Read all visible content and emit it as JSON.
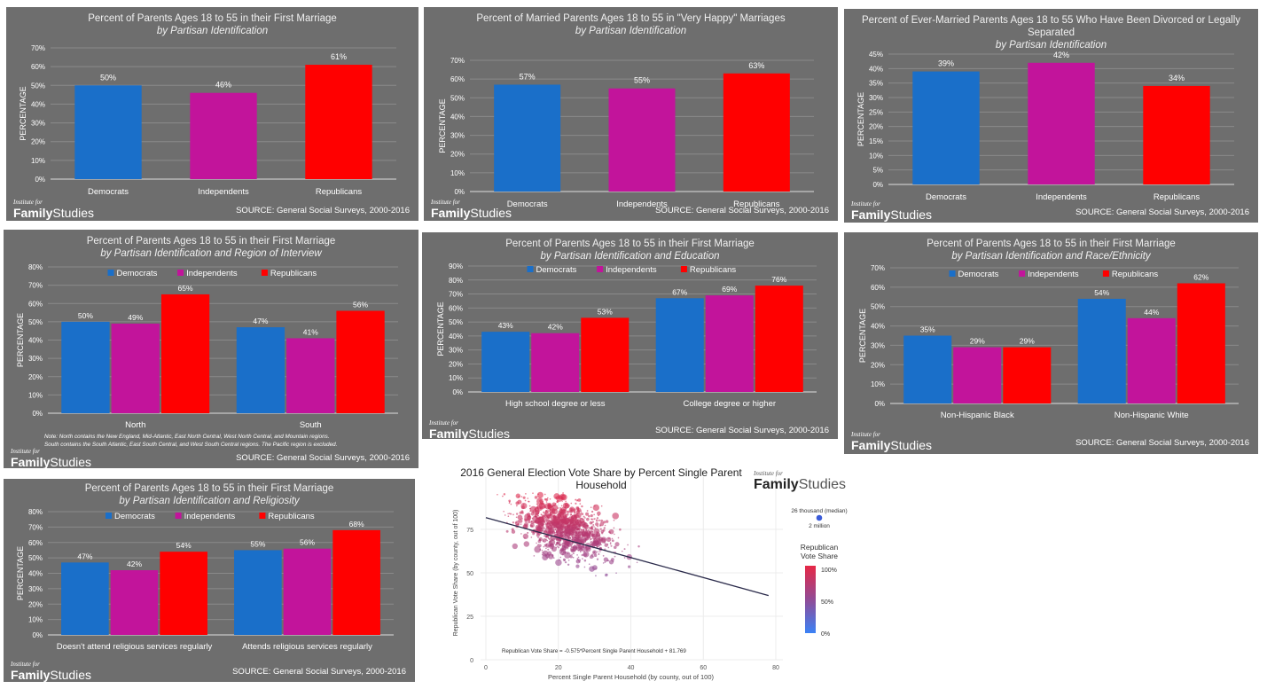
{
  "colors": {
    "dem": "#1a6fc9",
    "ind": "#c2149b",
    "rep": "#ff0000",
    "panel": "#6e6e6e"
  },
  "branding": {
    "inst": "Institute for",
    "family": "Family",
    "studies": "Studies"
  },
  "source": "SOURCE: General Social Surveys, 2000-2016",
  "ylabel": "PERCENTAGE",
  "legend": [
    "Democrats",
    "Independents",
    "Republicans"
  ],
  "panels": [
    {
      "title": "Percent of Parents Ages 18 to 55 in their First Marriage",
      "subtitle": "by Partisan Identification"
    },
    {
      "title": "Percent of Married Parents Ages 18 to 55 in \"Very Happy\" Marriages",
      "subtitle": "by Partisan Identification"
    },
    {
      "title": "Percent of Ever-Married Parents Ages 18 to 55 Who Have Been Divorced or Legally Separated",
      "subtitle": "by Partisan Identification"
    },
    {
      "title": "Percent of Parents Ages 18 to 55 in their First Marriage",
      "subtitle": "by Partisan Identification and Region of Interview",
      "note": [
        "Note: North contains the New England, Mid-Atlantic, East North Central, West North Central, and Mountain regions.",
        "South contains the South Atlantic, East South Central, and West South Central regions. The Pacific region is excluded."
      ]
    },
    {
      "title": "Percent of Parents Ages 18 to 55 in their First Marriage",
      "subtitle": "by Partisan Identification and Education"
    },
    {
      "title": "Percent of Parents Ages 18 to 55 in their First Marriage",
      "subtitle": "by Partisan Identification and Race/Ethnicity"
    },
    {
      "title": "Percent of Parents Ages 18 to 55 in their First Marriage",
      "subtitle": "by Partisan Identification and Religiosity"
    }
  ],
  "scatter_panel": {
    "title": "2016 General Election Vote Share by Percent Single Parent Household",
    "ylabel": "Republican Vote Share (by county, out of 100)",
    "xlabel": "Percent Single Parent Household (by county, out of 100)",
    "equation": "Republican Vote Share = -0.575*Percent Single Parent Household + 81.769",
    "size_legend": [
      "26 thousand (median)",
      "2 million"
    ],
    "color_legend_title": "Republican Vote Share",
    "color_legend_ticks": [
      "100%",
      "50%",
      "0%"
    ]
  },
  "chart_data": [
    {
      "type": "bar",
      "categories": [
        "Democrats",
        "Independents",
        "Republicans"
      ],
      "values": [
        50,
        46,
        61
      ],
      "ylim": [
        0,
        70
      ],
      "ylabel": "PERCENTAGE"
    },
    {
      "type": "bar",
      "categories": [
        "Democrats",
        "Independents",
        "Republicans"
      ],
      "values": [
        57,
        55,
        63
      ],
      "ylim": [
        0,
        70
      ],
      "ylabel": "PERCENTAGE"
    },
    {
      "type": "bar",
      "categories": [
        "Democrats",
        "Independents",
        "Republicans"
      ],
      "values": [
        39,
        42,
        34
      ],
      "ylim": [
        0,
        45
      ],
      "ylabel": "PERCENTAGE"
    },
    {
      "type": "bar",
      "categories": [
        "North",
        "South"
      ],
      "series": [
        {
          "name": "Democrats",
          "values": [
            50,
            47
          ]
        },
        {
          "name": "Independents",
          "values": [
            49,
            41
          ]
        },
        {
          "name": "Republicans",
          "values": [
            65,
            56
          ]
        }
      ],
      "ylim": [
        0,
        80
      ],
      "ylabel": "PERCENTAGE"
    },
    {
      "type": "bar",
      "categories": [
        "High school degree or less",
        "College degree or higher"
      ],
      "series": [
        {
          "name": "Democrats",
          "values": [
            43,
            67
          ]
        },
        {
          "name": "Independents",
          "values": [
            42,
            69
          ]
        },
        {
          "name": "Republicans",
          "values": [
            53,
            76
          ]
        }
      ],
      "ylim": [
        0,
        90
      ],
      "ylabel": "PERCENTAGE"
    },
    {
      "type": "bar",
      "categories": [
        "Non-Hispanic Black",
        "Non-Hispanic White"
      ],
      "series": [
        {
          "name": "Democrats",
          "values": [
            35,
            54
          ]
        },
        {
          "name": "Independents",
          "values": [
            29,
            44
          ]
        },
        {
          "name": "Republicans",
          "values": [
            29,
            62
          ]
        }
      ],
      "ylim": [
        0,
        70
      ],
      "ylabel": "PERCENTAGE"
    },
    {
      "type": "bar",
      "categories": [
        "Doesn't attend religious services regularly",
        "Attends religious services regularly"
      ],
      "series": [
        {
          "name": "Democrats",
          "values": [
            47,
            55
          ]
        },
        {
          "name": "Independents",
          "values": [
            42,
            56
          ]
        },
        {
          "name": "Republicans",
          "values": [
            54,
            68
          ]
        }
      ],
      "ylim": [
        0,
        80
      ],
      "ylabel": "PERCENTAGE"
    },
    {
      "type": "scatter",
      "title": "2016 General Election Vote Share by Percent Single Parent Household",
      "xlabel": "Percent Single Parent Household (by county, out of 100)",
      "ylabel": "Republican Vote Share (by county, out of 100)",
      "xlim": [
        0,
        80
      ],
      "ylim": [
        0,
        100
      ],
      "xticks": [
        0,
        20,
        40,
        60,
        80
      ],
      "yticks": [
        0,
        25,
        50,
        75
      ],
      "regression": {
        "slope": -0.575,
        "intercept": 81.769
      }
    }
  ]
}
